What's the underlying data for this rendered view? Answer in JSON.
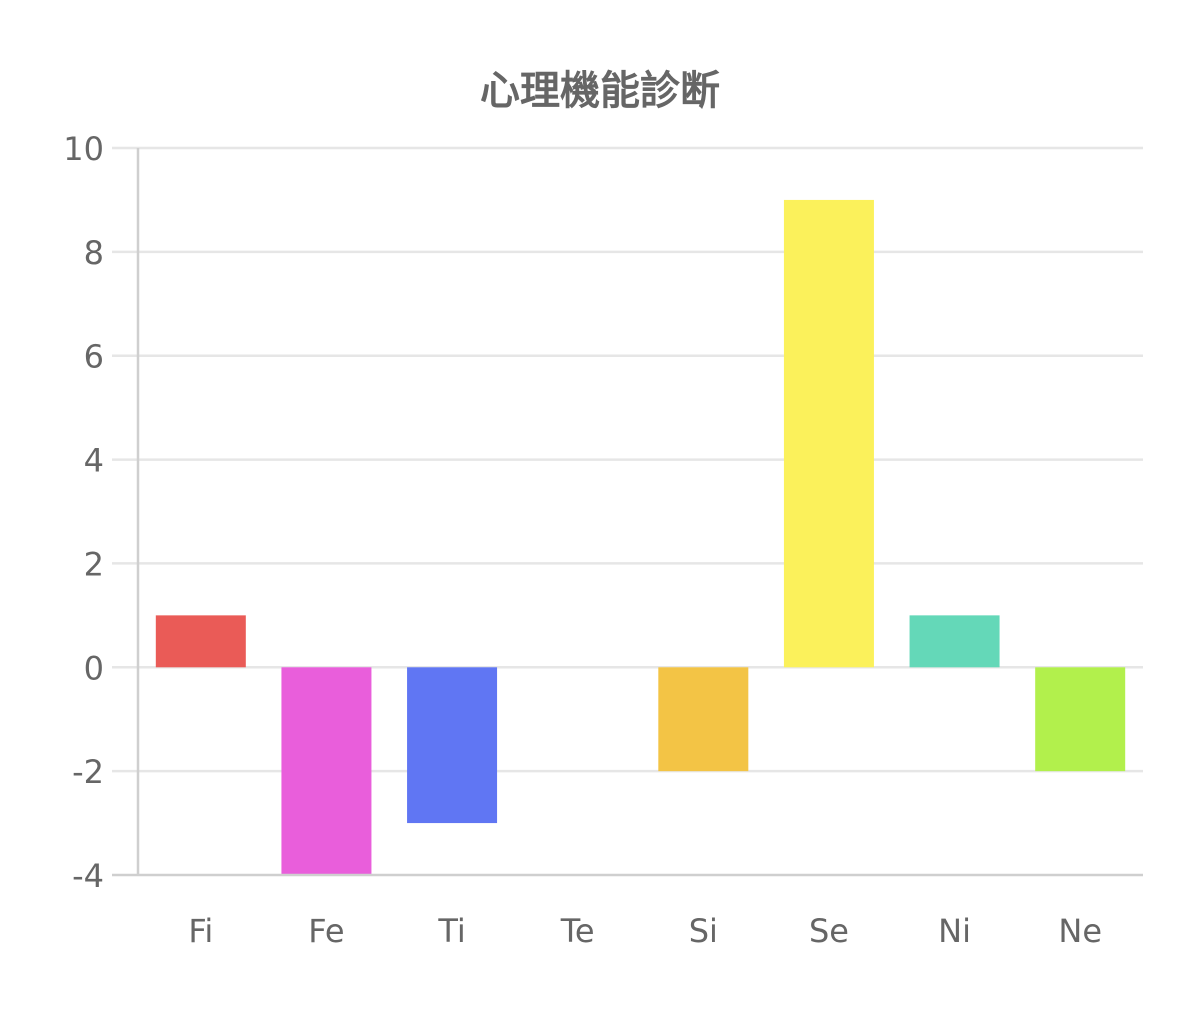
{
  "chart_data": {
    "type": "bar",
    "title": "心理機能診断",
    "xlabel": "",
    "ylabel": "",
    "categories": [
      "Fi",
      "Fe",
      "Ti",
      "Te",
      "Si",
      "Se",
      "Ni",
      "Ne"
    ],
    "values": [
      1,
      -4,
      -3,
      0,
      -2,
      9,
      1,
      -2
    ],
    "colors": [
      "#ea5b57",
      "#e95edb",
      "#6076f3",
      "#5fc0f5",
      "#f3c445",
      "#fbf15b",
      "#64d8b8",
      "#b2f04c"
    ],
    "ylim": [
      -4,
      10
    ],
    "yticks": [
      "10",
      "8",
      "6",
      "4",
      "2",
      "0",
      "-2",
      "-4"
    ],
    "ytick_values": [
      10,
      8,
      6,
      4,
      2,
      0,
      -2,
      -4
    ],
    "grid": true,
    "legend": "none"
  }
}
